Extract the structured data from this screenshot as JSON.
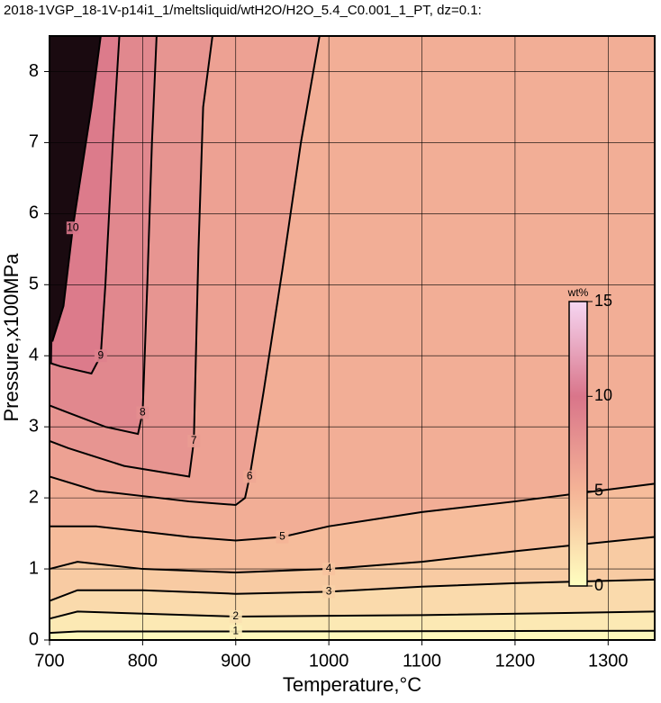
{
  "chart_data": {
    "type": "contour",
    "title": "2018-1VGP_18-1V-p14i1_1/meltsliquid/wtH2O/H2O_5.4_C0.001_1_PT, dz=0.1:",
    "x_label": "Temperature,°C",
    "y_label": "Pressure,x100MPa",
    "xlim": [
      700,
      1350
    ],
    "ylim": [
      0,
      8.5
    ],
    "xticks": [
      700,
      800,
      900,
      1000,
      1100,
      1200,
      1300
    ],
    "yticks": [
      0,
      1,
      2,
      3,
      4,
      5,
      6,
      7,
      8
    ],
    "grid": true,
    "colorbar": {
      "label": "wt%",
      "clim": [
        0,
        15
      ],
      "ticks": [
        0,
        5,
        10,
        15
      ],
      "colors": [
        "#ffffc0",
        "#f5b497",
        "#d9758a",
        "#f6d6f2"
      ]
    },
    "contours": [
      {
        "level": 10,
        "x": [
          703,
          715,
          725,
          745,
          755
        ],
        "y": [
          4.2,
          4.7,
          5.8,
          7.5,
          8.5
        ]
      },
      {
        "level": 9,
        "x": [
          700,
          712,
          745,
          755,
          760,
          768,
          775
        ],
        "y": [
          3.9,
          3.85,
          3.75,
          4.0,
          5,
          7,
          8.5
        ]
      },
      {
        "level": 8,
        "x": [
          700,
          720,
          760,
          795,
          800,
          805,
          810,
          815
        ],
        "y": [
          3.3,
          3.2,
          3.0,
          2.9,
          3.2,
          5,
          7,
          8.5
        ]
      },
      {
        "level": 7,
        "x": [
          700,
          720,
          780,
          850,
          855,
          860,
          865,
          875
        ],
        "y": [
          2.8,
          2.7,
          2.45,
          2.3,
          2.8,
          5.5,
          7.5,
          8.5
        ]
      },
      {
        "level": 6,
        "x": [
          700,
          750,
          850,
          900,
          910,
          915,
          930,
          950,
          970,
          990
        ],
        "y": [
          2.3,
          2.1,
          1.95,
          1.9,
          2.0,
          2.3,
          3.5,
          5.2,
          7,
          8.5
        ]
      },
      {
        "level": 5,
        "x": [
          700,
          750,
          850,
          900,
          950,
          1000,
          1100,
          1200,
          1350
        ],
        "y": [
          1.6,
          1.6,
          1.45,
          1.4,
          1.45,
          1.6,
          1.8,
          1.95,
          2.2
        ]
      },
      {
        "level": 4,
        "x": [
          700,
          730,
          800,
          900,
          1000,
          1100,
          1200,
          1350
        ],
        "y": [
          1.0,
          1.1,
          1.0,
          0.95,
          1.0,
          1.1,
          1.25,
          1.45
        ]
      },
      {
        "level": 3,
        "x": [
          700,
          730,
          800,
          900,
          1000,
          1100,
          1200,
          1350
        ],
        "y": [
          0.55,
          0.7,
          0.7,
          0.65,
          0.68,
          0.75,
          0.8,
          0.85
        ]
      },
      {
        "level": 2,
        "x": [
          700,
          730,
          900,
          1100,
          1350
        ],
        "y": [
          0.3,
          0.4,
          0.33,
          0.35,
          0.4
        ]
      },
      {
        "level": 1,
        "x": [
          700,
          730,
          900,
          1350
        ],
        "y": [
          0.1,
          0.12,
          0.12,
          0.13
        ]
      }
    ]
  }
}
